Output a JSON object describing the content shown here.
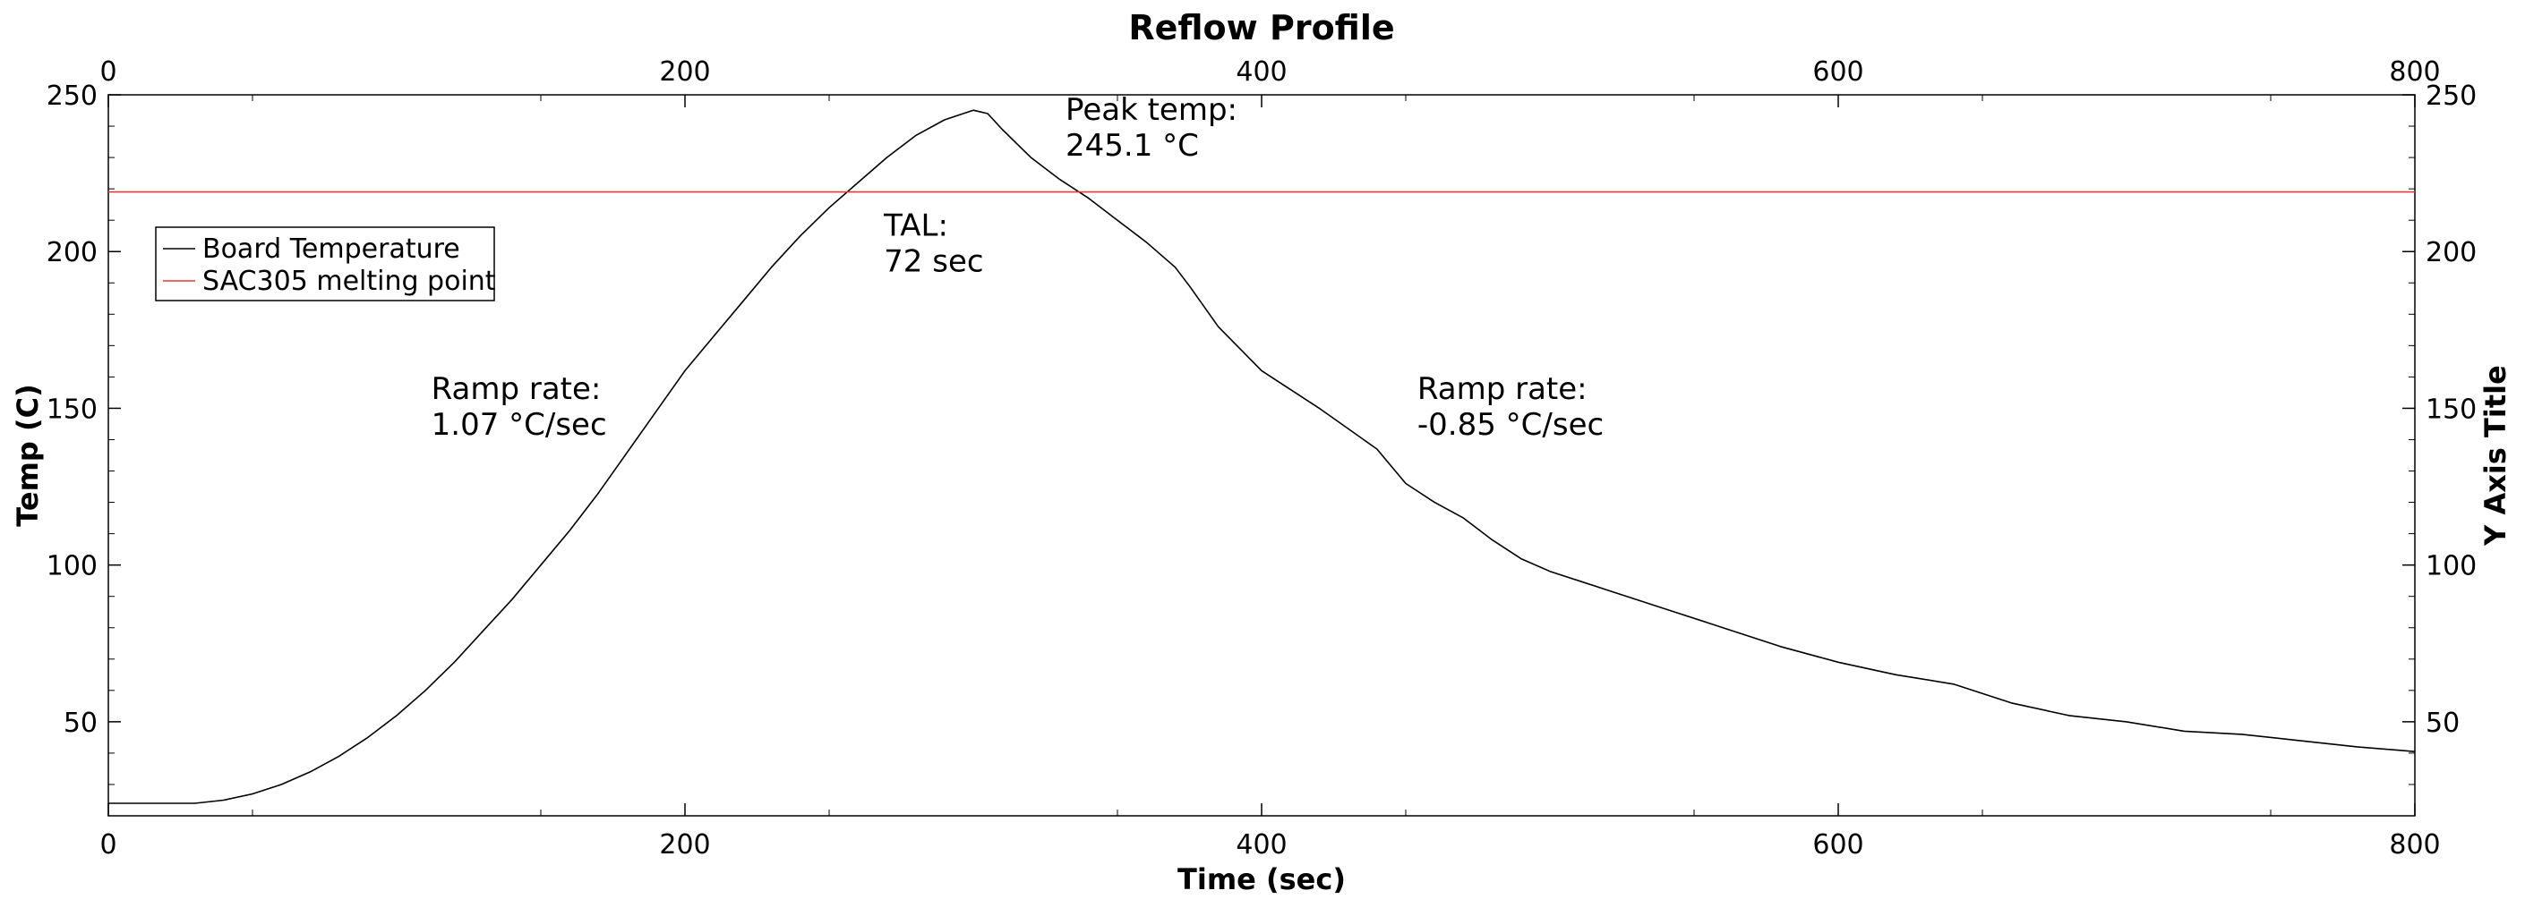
{
  "chart_data": {
    "type": "line",
    "title": "Reflow Profile",
    "xlabel": "Time (sec)",
    "ylabel": "Temp (C)",
    "ylabel_right": "Y Axis Title",
    "xlim": [
      0,
      800
    ],
    "ylim": [
      20,
      250
    ],
    "x_ticks": [
      0,
      200,
      400,
      600,
      800
    ],
    "y_ticks": [
      50,
      100,
      150,
      200,
      250
    ],
    "grid": false,
    "legend_position": "upper-left",
    "series": [
      {
        "name": "Board Temperature",
        "color": "#000000",
        "points": [
          [
            0,
            24
          ],
          [
            20,
            24
          ],
          [
            30,
            24
          ],
          [
            40,
            25
          ],
          [
            50,
            27
          ],
          [
            60,
            30
          ],
          [
            70,
            34
          ],
          [
            80,
            39
          ],
          [
            90,
            45
          ],
          [
            100,
            52
          ],
          [
            110,
            60
          ],
          [
            120,
            69
          ],
          [
            130,
            79
          ],
          [
            140,
            89
          ],
          [
            150,
            100
          ],
          [
            160,
            111
          ],
          [
            170,
            123
          ],
          [
            180,
            136
          ],
          [
            190,
            149
          ],
          [
            200,
            162
          ],
          [
            210,
            173
          ],
          [
            220,
            184
          ],
          [
            230,
            195
          ],
          [
            240,
            205
          ],
          [
            250,
            214
          ],
          [
            260,
            222
          ],
          [
            270,
            230
          ],
          [
            280,
            237
          ],
          [
            290,
            242
          ],
          [
            300,
            245.1
          ],
          [
            305,
            244
          ],
          [
            310,
            239
          ],
          [
            320,
            230
          ],
          [
            330,
            223
          ],
          [
            340,
            217
          ],
          [
            350,
            210
          ],
          [
            360,
            203
          ],
          [
            370,
            195
          ],
          [
            375,
            189
          ],
          [
            385,
            176
          ],
          [
            400,
            162
          ],
          [
            420,
            150
          ],
          [
            440,
            137
          ],
          [
            450,
            126
          ],
          [
            460,
            120
          ],
          [
            470,
            115
          ],
          [
            480,
            108
          ],
          [
            490,
            102
          ],
          [
            500,
            98
          ],
          [
            520,
            92
          ],
          [
            540,
            86
          ],
          [
            560,
            80
          ],
          [
            580,
            74
          ],
          [
            600,
            69
          ],
          [
            620,
            65
          ],
          [
            640,
            62
          ],
          [
            660,
            56
          ],
          [
            680,
            52
          ],
          [
            700,
            50
          ],
          [
            720,
            47
          ],
          [
            740,
            46
          ],
          [
            760,
            44
          ],
          [
            780,
            42
          ],
          [
            800,
            40.5
          ]
        ]
      },
      {
        "name": "SAC305 melting point",
        "color": "#e03a3a",
        "points": [
          [
            0,
            219
          ],
          [
            800,
            219
          ]
        ]
      }
    ],
    "annotations": [
      {
        "lines": [
          "Ramp rate:",
          "1.07 °C/sec"
        ],
        "x": 112,
        "y": 153
      },
      {
        "lines": [
          "TAL:",
          "72 sec"
        ],
        "x": 269,
        "y": 205
      },
      {
        "lines": [
          "Peak temp:",
          "245.1 °C"
        ],
        "x": 332,
        "y": 242
      },
      {
        "lines": [
          "Ramp rate:",
          "-0.85 °C/sec"
        ],
        "x": 454,
        "y": 153
      }
    ]
  }
}
